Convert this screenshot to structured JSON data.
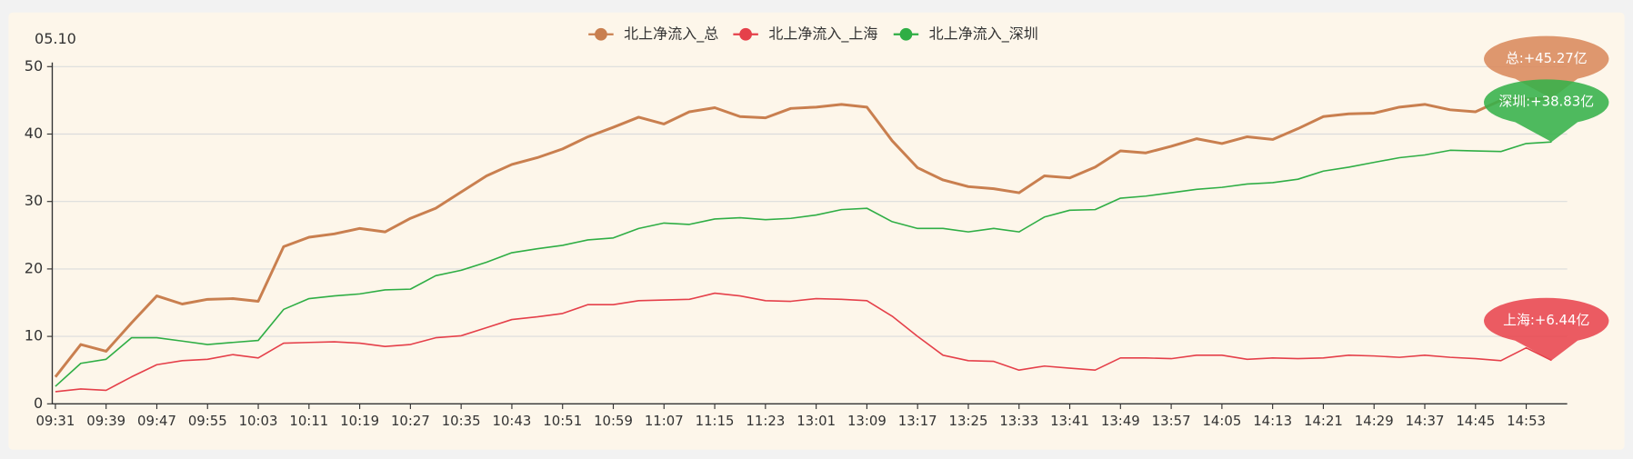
{
  "chart_data": {
    "type": "line",
    "y_axis_name": "05.10",
    "categories": [
      "09:31",
      null,
      "09:39",
      null,
      "09:47",
      null,
      "09:55",
      null,
      "10:03",
      null,
      "10:11",
      null,
      "10:19",
      null,
      "10:27",
      null,
      "10:35",
      null,
      "10:43",
      null,
      "10:51",
      null,
      "10:59",
      null,
      "11:07",
      null,
      "11:15",
      null,
      "11:23",
      null,
      "13:01",
      null,
      "13:09",
      null,
      "13:17",
      null,
      "13:25",
      null,
      "13:33",
      null,
      "13:41",
      null,
      "13:49",
      null,
      "13:57",
      null,
      "14:05",
      null,
      "14:13",
      null,
      "14:21",
      null,
      "14:29",
      null,
      "14:37",
      null,
      "14:45",
      null,
      "14:53",
      null
    ],
    "series": [
      {
        "name": "北上净流入_总",
        "color": "#c97f4f",
        "mark_color": "#d98a5c",
        "mark_label": "总:+45.27亿",
        "values": [
          4.0,
          8.8,
          7.8,
          12,
          16,
          14.8,
          15.5,
          15.6,
          15.2,
          23.3,
          24.7,
          25.2,
          26,
          25.5,
          27.5,
          29,
          31.4,
          33.8,
          35.5,
          36.5,
          37.8,
          39.6,
          41,
          42.5,
          41.5,
          43.3,
          43.9,
          42.6,
          42.4,
          43.8,
          44,
          44.4,
          44,
          39,
          35,
          33.2,
          32.2,
          31.9,
          31.3,
          33.8,
          33.5,
          35.1,
          37.5,
          37.2,
          38.2,
          39.3,
          38.6,
          39.6,
          39.2,
          40.8,
          42.6,
          43,
          43.1,
          44,
          44.4,
          43.6,
          43.3,
          45,
          45.2,
          45.27
        ]
      },
      {
        "name": "北上净流入_上海",
        "color": "#e5404a",
        "mark_color": "#e8464e",
        "mark_label": "上海:+6.44亿",
        "values": [
          1.8,
          2.2,
          2.0,
          4.0,
          5.8,
          6.4,
          6.6,
          7.3,
          6.8,
          9.0,
          9.1,
          9.2,
          9.0,
          8.5,
          8.8,
          9.8,
          10.1,
          11.3,
          12.5,
          12.9,
          13.4,
          14.7,
          14.7,
          15.3,
          15.4,
          15.5,
          16.4,
          16,
          15.3,
          15.2,
          15.6,
          15.5,
          15.3,
          13,
          10,
          7.2,
          6.4,
          6.3,
          5,
          5.6,
          5.3,
          5,
          6.8,
          6.8,
          6.7,
          7.2,
          7.2,
          6.6,
          6.8,
          6.7,
          6.8,
          7.2,
          7.1,
          6.9,
          7.2,
          6.9,
          6.7,
          6.4,
          8.3,
          6.44
        ]
      },
      {
        "name": "北上净流入_深圳",
        "color": "#2fae45",
        "mark_color": "#35b24a",
        "mark_label": "深圳:+38.83亿",
        "values": [
          2.6,
          6.0,
          6.6,
          9.8,
          9.8,
          9.3,
          8.8,
          9.1,
          9.4,
          14,
          15.6,
          16,
          16.3,
          16.9,
          17,
          19,
          19.8,
          21,
          22.4,
          23,
          23.5,
          24.3,
          24.6,
          26,
          26.8,
          26.6,
          27.4,
          27.6,
          27.3,
          27.5,
          28,
          28.8,
          29,
          27,
          26,
          26,
          25.5,
          26,
          25.5,
          27.7,
          28.7,
          28.8,
          30.5,
          30.8,
          31.3,
          31.8,
          32.1,
          32.6,
          32.8,
          33.3,
          34.5,
          35.1,
          35.8,
          36.5,
          36.9,
          37.6,
          37.5,
          37.4,
          38.6,
          38.83
        ]
      }
    ],
    "ylim": [
      0,
      50
    ],
    "yticks": [
      0,
      10,
      20,
      30,
      40,
      50
    ],
    "grid": true,
    "legend": "top"
  }
}
